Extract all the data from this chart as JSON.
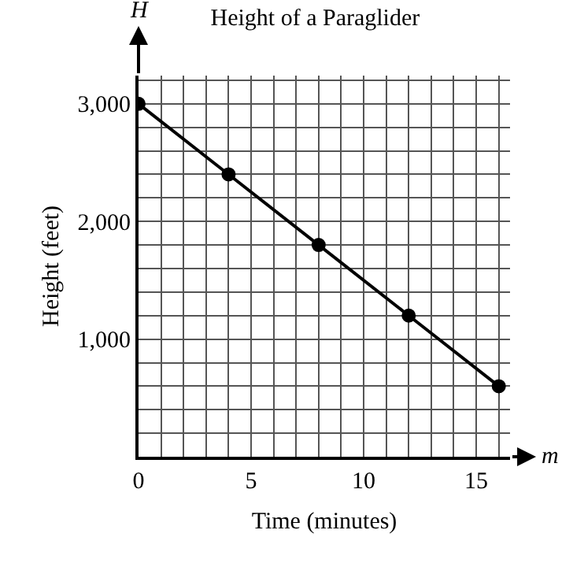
{
  "chart_data": {
    "type": "line",
    "title": "Height of a Paraglider",
    "xlabel": "Time (minutes)",
    "ylabel": "Height (feet)",
    "annotations": [
      "H",
      "m"
    ],
    "x": [
      0,
      4,
      8,
      12,
      16
    ],
    "series": [
      {
        "color": "#000000",
        "values": [
          3000,
          2400,
          1800,
          1200,
          600
        ]
      }
    ],
    "xlim": [
      0,
      16.5
    ],
    "xticks": [
      0,
      {
        "value": 1,
        "label": null
      },
      {
        "value": 2,
        "label": null
      },
      {
        "value": 3,
        "label": null
      },
      {
        "value": 4,
        "label": null
      },
      5,
      {
        "value": 6,
        "label": null
      },
      {
        "value": 7,
        "label": null
      },
      {
        "value": 8,
        "label": null
      },
      {
        "value": 9,
        "label": null
      },
      10,
      {
        "value": 11,
        "label": null
      },
      {
        "value": 12,
        "label": null
      },
      {
        "value": 13,
        "label": null
      },
      {
        "value": 14,
        "label": null
      },
      15,
      {
        "value": 16,
        "label": null
      }
    ],
    "ylim": [
      0,
      3240
    ],
    "yticks": [
      {
        "value": 200,
        "label": null
      },
      {
        "value": 400,
        "label": null
      },
      {
        "value": 600,
        "label": null
      },
      {
        "value": 800,
        "label": null
      },
      {
        "value": 1000,
        "label": "1,000"
      },
      {
        "value": 1200,
        "label": null
      },
      {
        "value": 1400,
        "label": null
      },
      {
        "value": 1600,
        "label": null
      },
      {
        "value": 1800,
        "label": null
      },
      {
        "value": 2000,
        "label": "2,000"
      },
      {
        "value": 2200,
        "label": null
      },
      {
        "value": 2400,
        "label": null
      },
      {
        "value": 2600,
        "label": null
      },
      {
        "value": 2800,
        "label": null
      },
      {
        "value": 3000,
        "label": "3,000"
      },
      {
        "value": 3200,
        "label": null
      }
    ],
    "grid": true,
    "marker": "circle",
    "line_style": "solid"
  }
}
